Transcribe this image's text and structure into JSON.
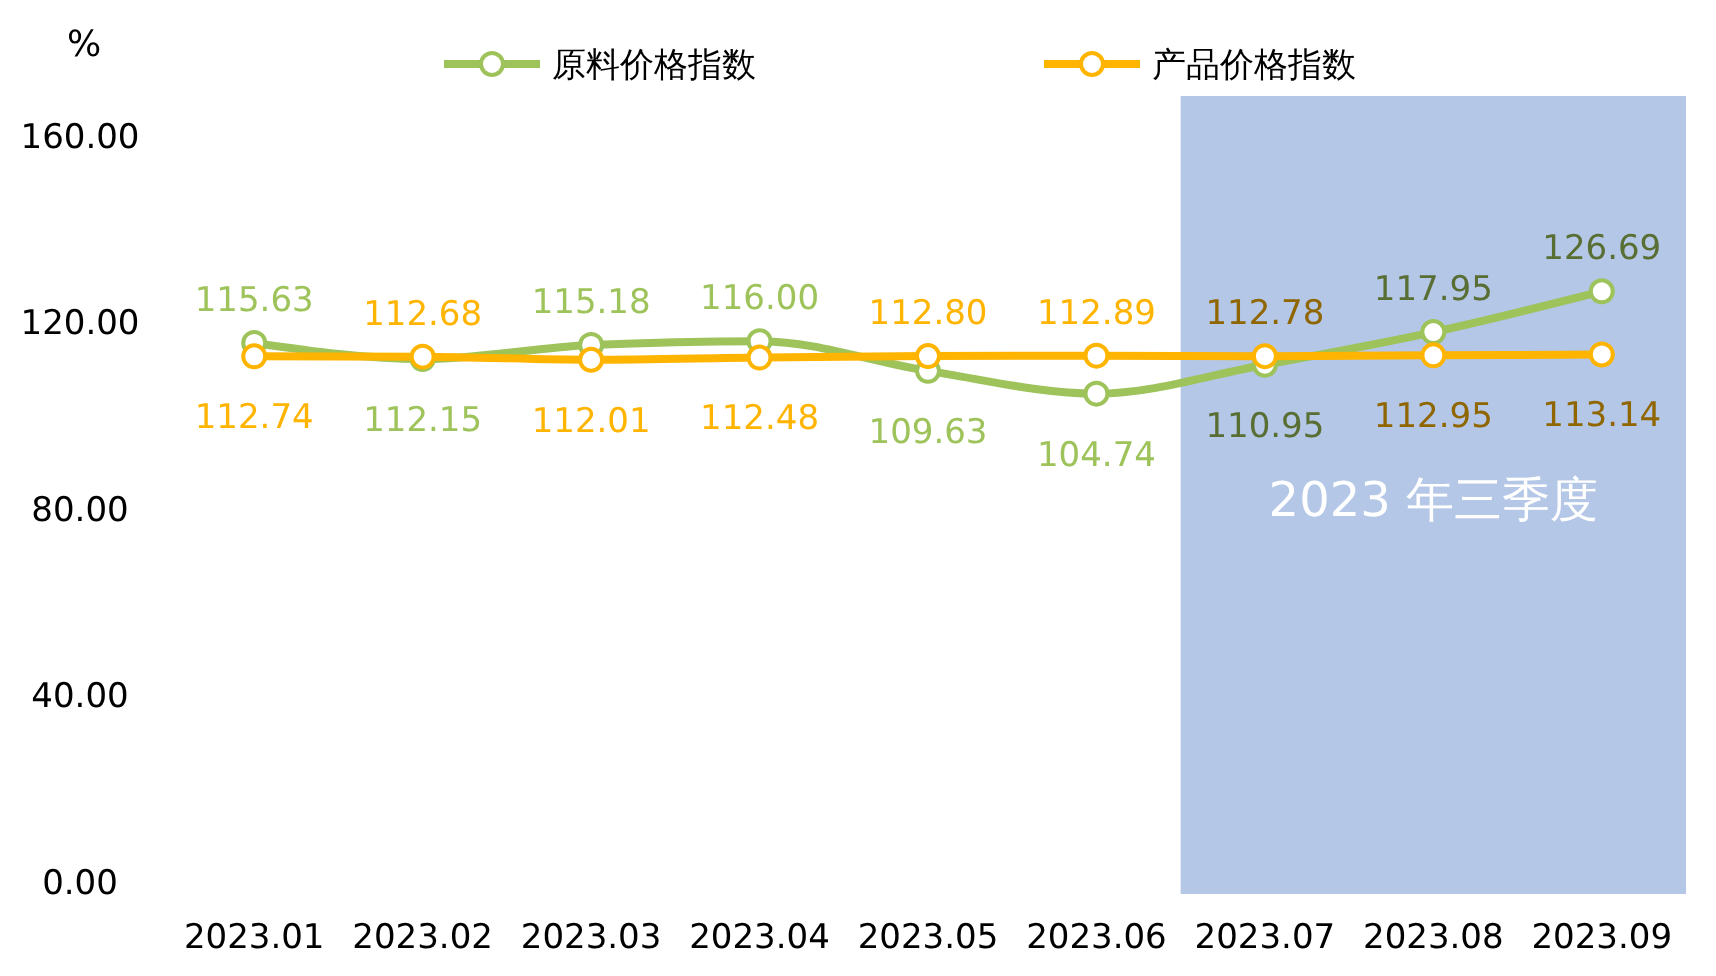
{
  "chart_data": {
    "type": "line",
    "ylabel": "%",
    "categories": [
      "2023.01",
      "2023.02",
      "2023.03",
      "2023.04",
      "2023.05",
      "2023.06",
      "2023.07",
      "2023.08",
      "2023.09"
    ],
    "series": [
      {
        "name": "原料价格指数",
        "color": "#9dc35a",
        "values": [
          115.63,
          112.15,
          115.18,
          116.0,
          109.63,
          104.74,
          110.95,
          117.95,
          126.69
        ],
        "value_labels": [
          "115.63",
          "112.15",
          "115.18",
          "116.00",
          "109.63",
          "104.74",
          "110.95",
          "117.95",
          "126.69"
        ]
      },
      {
        "name": "产品价格指数",
        "color": "#ffb400",
        "values": [
          112.74,
          112.68,
          112.01,
          112.48,
          112.8,
          112.89,
          112.78,
          112.95,
          113.14
        ],
        "value_labels": [
          "112.74",
          "112.68",
          "112.01",
          "112.48",
          "112.80",
          "112.89",
          "112.78",
          "112.95",
          "113.14"
        ]
      }
    ],
    "ylim": [
      0,
      160
    ],
    "yticks": [
      {
        "value": 0,
        "label": "0.00"
      },
      {
        "value": 40,
        "label": "40.00"
      },
      {
        "value": 80,
        "label": "80.00"
      },
      {
        "value": 120,
        "label": "120.00"
      },
      {
        "value": 160,
        "label": "160.00"
      }
    ],
    "bands": [
      {
        "axis": "x",
        "from": "2023.07",
        "to": "2023.09",
        "label": "2023 年三季度",
        "color": "#b4c7e7"
      }
    ],
    "grid": false,
    "legend": "top",
    "marker": "circle",
    "line_style": "solid"
  }
}
